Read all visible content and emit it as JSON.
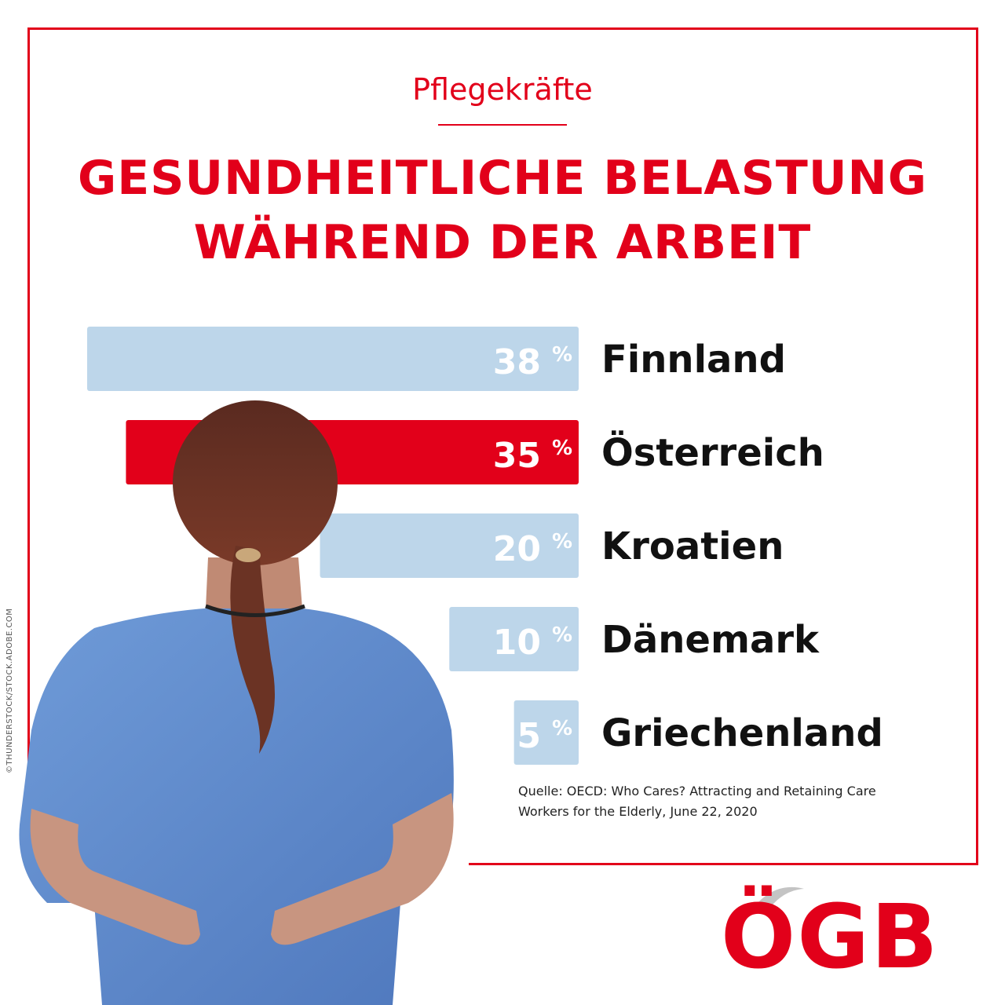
{
  "header": {
    "subtitle": "Pflegekräfte",
    "title_line1": "GESUNDHEITLICHE BELASTUNG",
    "title_line2": "WÄHREND DER ARBEIT"
  },
  "chart_data": {
    "type": "bar",
    "orientation": "horizontal",
    "title": "GESUNDHEITLICHE BELASTUNG WÄHREND DER ARBEIT",
    "unit": "%",
    "categories": [
      "Finnland",
      "Österreich",
      "Kroatien",
      "Dänemark",
      "Griechenland"
    ],
    "values": [
      38,
      35,
      20,
      10,
      5
    ],
    "highlight": "Österreich",
    "colors": {
      "default": "#bdd6ea",
      "highlight": "#e2001a"
    }
  },
  "source": {
    "line1": "Quelle: OECD: Who Cares? Attracting and Retaining Care",
    "line2": "Workers for the Elderly, June 22, 2020"
  },
  "credit": "©THUNDERSTOCK/STOCK.ADOBE.COM",
  "logo": {
    "text": "ÖGB",
    "color": "#e2001a"
  },
  "photo": {
    "icon": "nurse-photo"
  }
}
